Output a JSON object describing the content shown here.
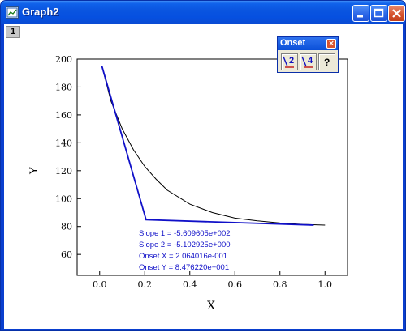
{
  "window": {
    "title": "Graph2",
    "layer_label": "1"
  },
  "onset_panel": {
    "title": "Onset",
    "buttons": [
      {
        "label": "2"
      },
      {
        "label": "4"
      },
      {
        "label": "?"
      }
    ]
  },
  "results": {
    "slope1": "Slope 1 = -5.609605e+002",
    "slope2": "Slope 2 = -5.102925e+000",
    "onset_x": "Onset X = 2.064016e-001",
    "onset_y": "Onset Y = 8.476220e+001"
  },
  "chart_data": {
    "type": "line",
    "xlabel": "X",
    "ylabel": "Y",
    "xlim": [
      -0.1,
      1.1
    ],
    "ylim": [
      45,
      200
    ],
    "x_ticks": [
      0.0,
      0.2,
      0.4,
      0.6,
      0.8,
      1.0
    ],
    "x_tick_labels": [
      "0.0",
      "0.2",
      "0.4",
      "0.6",
      "0.8",
      "1.0"
    ],
    "y_ticks": [
      60,
      80,
      100,
      120,
      140,
      160,
      180,
      200
    ],
    "y_tick_labels": [
      "60",
      "80",
      "100",
      "120",
      "140",
      "160",
      "180",
      "200"
    ],
    "series": [
      {
        "x": [
          0.01,
          0.05,
          0.1,
          0.15,
          0.2,
          0.25,
          0.3,
          0.4,
          0.5,
          0.6,
          0.7,
          0.8,
          0.9,
          1.0
        ],
        "y": [
          195,
          170,
          150,
          135,
          123,
          114,
          106,
          96,
          90,
          86,
          84,
          82.5,
          81.5,
          81
        ],
        "color": "#000000"
      },
      {
        "x": [
          0.01,
          0.206,
          0.95
        ],
        "y": [
          195,
          84.8,
          81
        ],
        "color": "#1010c8"
      }
    ],
    "text_color": "#1010c8"
  }
}
